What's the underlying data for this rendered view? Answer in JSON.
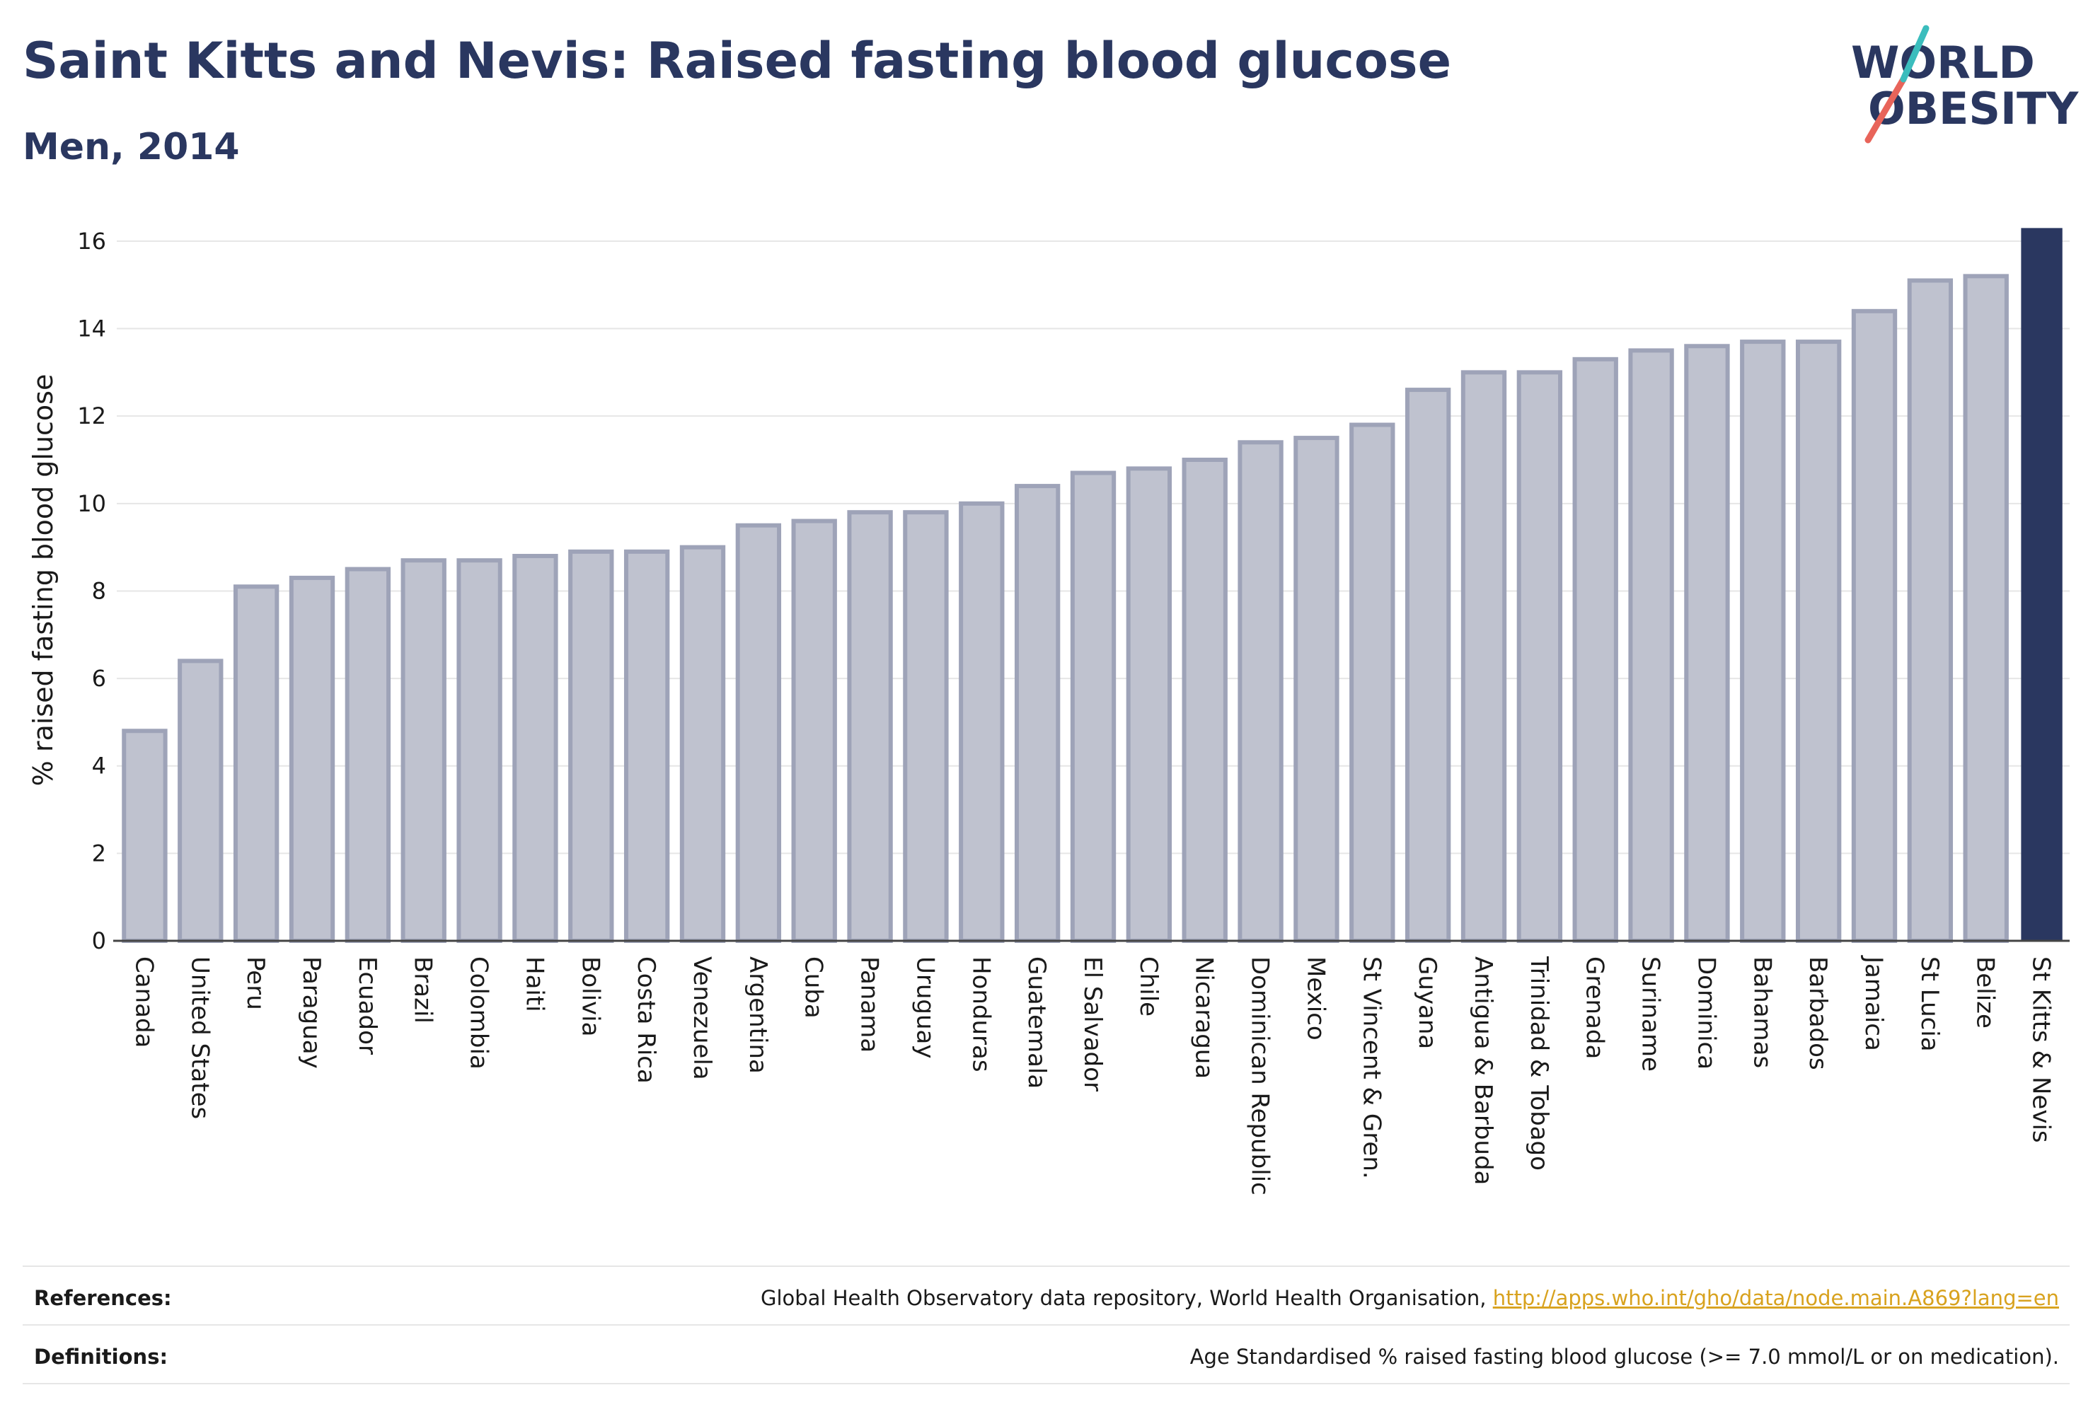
{
  "header": {
    "title": "Saint Kitts and Nevis: Raised fasting blood glucose",
    "subtitle": "Men, 2014"
  },
  "logo": {
    "line1": "WORLD",
    "line2": "OBESITY",
    "slash_colors": [
      "#e8645a",
      "#3bbdbd"
    ]
  },
  "colors": {
    "text": "#2a3760",
    "bar_default_fill": "#bfc2cf",
    "bar_default_stroke": "#9ea3b8",
    "bar_highlight": "#2a3760",
    "grid": "#e6e6e6",
    "link": "#d8a21e"
  },
  "chart_data": {
    "type": "bar",
    "title": "Saint Kitts and Nevis: Raised fasting blood glucose",
    "subtitle": "Men, 2014",
    "xlabel": "",
    "ylabel": "% raised fasting blood glucose",
    "ylim": [
      0,
      16.5
    ],
    "yticks": [
      0,
      2,
      4,
      6,
      8,
      10,
      12,
      14,
      16
    ],
    "grid": true,
    "highlight": "St Kitts & Nevis",
    "categories": [
      "Canada",
      "United States",
      "Peru",
      "Paraguay",
      "Ecuador",
      "Brazil",
      "Colombia",
      "Haiti",
      "Bolivia",
      "Costa Rica",
      "Venezuela",
      "Argentina",
      "Cuba",
      "Panama",
      "Uruguay",
      "Honduras",
      "Guatemala",
      "El Salvador",
      "Chile",
      "Nicaragua",
      "Dominican Republic",
      "Mexico",
      "St Vincent & Gren.",
      "Guyana",
      "Antigua & Barbuda",
      "Trinidad & Tobago",
      "Grenada",
      "Suriname",
      "Dominica",
      "Bahamas",
      "Barbados",
      "Jamaica",
      "St Lucia",
      "Belize",
      "St Kitts & Nevis"
    ],
    "values": [
      4.8,
      6.4,
      8.1,
      8.3,
      8.5,
      8.7,
      8.7,
      8.8,
      8.9,
      8.9,
      9.0,
      9.5,
      9.6,
      9.8,
      9.8,
      10.0,
      10.4,
      10.7,
      10.8,
      11.0,
      11.4,
      11.5,
      11.8,
      12.6,
      13.0,
      13.0,
      13.3,
      13.5,
      13.6,
      13.7,
      13.7,
      14.4,
      15.1,
      15.2,
      16.3
    ]
  },
  "footer": {
    "references_label": "References:",
    "references_text": "Global Health Observatory data repository, World Health Organisation, ",
    "references_link": "http://apps.who.int/gho/data/node.main.A869?lang=en",
    "definitions_label": "Definitions:",
    "definitions_text": "Age Standardised % raised fasting blood glucose (>= 7.0 mmol/L or on medication)."
  }
}
